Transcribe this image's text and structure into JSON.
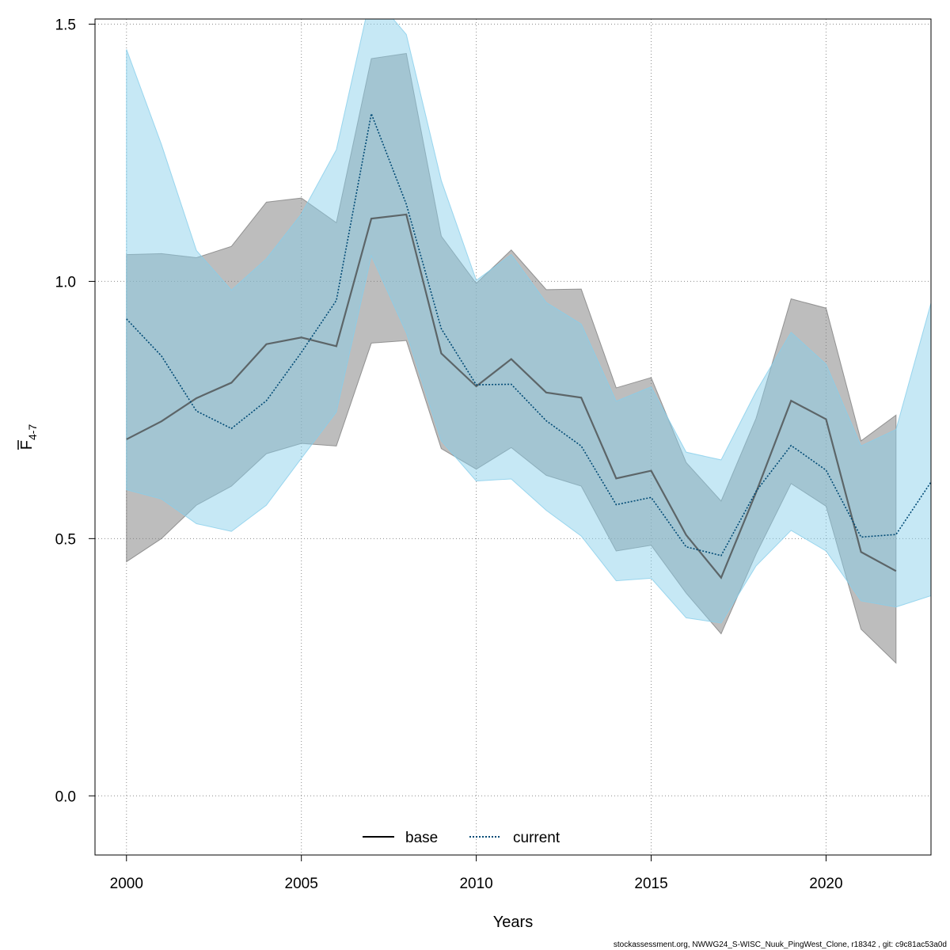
{
  "chart_data": {
    "type": "line",
    "xlabel": "Years",
    "ylabel": {
      "main": "F",
      "subscript": "4-7"
    },
    "xlim": [
      1999.1,
      2023
    ],
    "ylim": [
      -0.115,
      1.51
    ],
    "xticks": [
      2000,
      2005,
      2010,
      2015,
      2020
    ],
    "xtick_labels": [
      "2000",
      "2005",
      "2010",
      "2015",
      "2020"
    ],
    "yticks": [
      0.0,
      0.5,
      1.0,
      1.5
    ],
    "ytick_labels": [
      "0.0",
      "0.5",
      "1.0",
      "1.5"
    ],
    "grid": true,
    "legend_position": "bottom",
    "series": [
      {
        "name": "base",
        "line_style": "solid",
        "line_color": "#444444",
        "band_color": "#808080",
        "x": [
          2000,
          2001,
          2002,
          2003,
          2004,
          2005,
          2006,
          2007,
          2008,
          2009,
          2010,
          2011,
          2012,
          2013,
          2014,
          2015,
          2016,
          2017,
          2018,
          2019,
          2020,
          2021,
          2022
        ],
        "values": [
          0.693,
          0.728,
          0.773,
          0.803,
          0.878,
          0.891,
          0.874,
          1.122,
          1.13,
          0.86,
          0.796,
          0.849,
          0.784,
          0.774,
          0.617,
          0.632,
          0.507,
          0.424,
          0.59,
          0.768,
          0.732,
          0.474,
          0.437
        ],
        "lower": [
          0.455,
          0.5,
          0.565,
          0.602,
          0.665,
          0.685,
          0.68,
          0.88,
          0.885,
          0.675,
          0.635,
          0.677,
          0.623,
          0.602,
          0.476,
          0.487,
          0.394,
          0.315,
          0.47,
          0.607,
          0.563,
          0.324,
          0.258
        ],
        "upper": [
          1.052,
          1.054,
          1.046,
          1.068,
          1.154,
          1.162,
          1.114,
          1.433,
          1.443,
          1.088,
          0.996,
          1.061,
          0.984,
          0.985,
          0.793,
          0.813,
          0.648,
          0.573,
          0.734,
          0.966,
          0.948,
          0.69,
          0.74
        ]
      },
      {
        "name": "current",
        "line_style": "dotted",
        "line_color": "#004a75",
        "band_color": "#87ceeb",
        "x": [
          2000,
          2001,
          2002,
          2003,
          2004,
          2005,
          2006,
          2007,
          2008,
          2009,
          2010,
          2011,
          2012,
          2013,
          2014,
          2015,
          2016,
          2017,
          2018,
          2019,
          2020,
          2021,
          2022,
          2023
        ],
        "values": [
          0.927,
          0.855,
          0.748,
          0.714,
          0.768,
          0.862,
          0.963,
          1.326,
          1.15,
          0.908,
          0.799,
          0.8,
          0.729,
          0.68,
          0.566,
          0.58,
          0.484,
          0.467,
          0.592,
          0.681,
          0.633,
          0.503,
          0.508,
          0.61
        ],
        "lower": [
          0.595,
          0.577,
          0.529,
          0.514,
          0.565,
          0.656,
          0.746,
          1.05,
          0.9,
          0.69,
          0.612,
          0.616,
          0.555,
          0.505,
          0.418,
          0.423,
          0.346,
          0.336,
          0.447,
          0.516,
          0.476,
          0.379,
          0.367,
          0.389
        ],
        "upper": [
          1.451,
          1.266,
          1.06,
          0.983,
          1.044,
          1.131,
          1.256,
          1.56,
          1.48,
          1.196,
          1.002,
          1.052,
          0.959,
          0.917,
          0.767,
          0.795,
          0.668,
          0.653,
          0.786,
          0.901,
          0.839,
          0.68,
          0.712,
          0.958
        ]
      }
    ]
  },
  "footer": "stockassessment.org, NWWG24_S-WISC_Nuuk_PingWest_Clone, r18342 , git: c9c81ac53a0d"
}
